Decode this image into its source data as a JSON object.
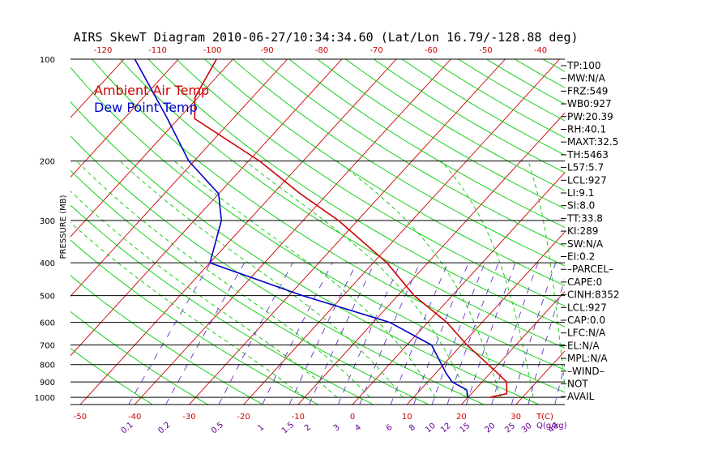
{
  "title": "AIRS SkewT Diagram 2010-06-27/10:34:34.60 (Lat/Lon 16.79/-128.88 deg)",
  "colors": {
    "ambient": "#cc0000",
    "dewpoint": "#0000cc",
    "dry_adiabat": "#00cc00",
    "moist_adiabat": "#00cc00",
    "mixing_ratio": "#6633cc",
    "isotherm": "#cc0000",
    "tick_red": "#cc0000",
    "tick_purple": "#660099"
  },
  "chart_data": {
    "type": "skew-t",
    "title": "AIRS SkewT Diagram 2010-06-27/10:34:34.60 (Lat/Lon 16.79/-128.88 deg)",
    "ylabel": "PRESSURE (MB)",
    "y_scale": "log",
    "ylim": [
      1050,
      100
    ],
    "pressure_levels": [
      100,
      200,
      300,
      400,
      500,
      600,
      700,
      800,
      900,
      1000
    ],
    "bottom_temp_ticks": [
      -50,
      -40,
      -30,
      -20,
      -10,
      0,
      10,
      20,
      30
    ],
    "top_temp_ticks": [
      -120,
      -110,
      -100,
      -90,
      -80,
      -70,
      -60,
      -50,
      -40
    ],
    "mixing_ratio_ticks": [
      "0.1",
      "0.2",
      "0.5",
      "1",
      "1.5",
      "2",
      "3",
      "4",
      "6",
      "8",
      "10",
      "12",
      "15",
      "20",
      "25",
      "30",
      "40"
    ],
    "corner_labels": [
      "T(C)",
      "Q(g/kg)"
    ],
    "legend": [
      {
        "name": "Ambient Air Temp",
        "color": "#cc0000"
      },
      {
        "name": "Dew Point Temp",
        "color": "#0000cc"
      }
    ],
    "series": [
      {
        "name": "Ambient Air Temp",
        "points": [
          {
            "p": 1000,
            "t": 24.0
          },
          {
            "p": 975,
            "t": 26.5
          },
          {
            "p": 900,
            "t": 24.5
          },
          {
            "p": 850,
            "t": 21.5
          },
          {
            "p": 700,
            "t": 11.0
          },
          {
            "p": 600,
            "t": 3.5
          },
          {
            "p": 500,
            "t": -7.0
          },
          {
            "p": 400,
            "t": -17.5
          },
          {
            "p": 300,
            "t": -33.5
          },
          {
            "p": 250,
            "t": -45.0
          },
          {
            "p": 200,
            "t": -58.0
          },
          {
            "p": 150,
            "t": -77.0
          },
          {
            "p": 130,
            "t": -80.5
          },
          {
            "p": 100,
            "t": -83.0
          }
        ]
      },
      {
        "name": "Dew Point Temp",
        "points": [
          {
            "p": 1000,
            "t": 20.0
          },
          {
            "p": 950,
            "t": 18.5
          },
          {
            "p": 900,
            "t": 14.5
          },
          {
            "p": 850,
            "t": 12.0
          },
          {
            "p": 700,
            "t": 4.5
          },
          {
            "p": 600,
            "t": -7.0
          },
          {
            "p": 500,
            "t": -27.5
          },
          {
            "p": 400,
            "t": -50.0
          },
          {
            "p": 300,
            "t": -55.0
          },
          {
            "p": 250,
            "t": -60.0
          },
          {
            "p": 200,
            "t": -71.0
          },
          {
            "p": 150,
            "t": -82.0
          },
          {
            "p": 100,
            "t": -98.0
          }
        ]
      }
    ],
    "indices": [
      "TP:100",
      "MW:N/A",
      "FRZ:549",
      "WB0:927",
      "PW:20.39",
      "RH:40.1",
      "MAXT:32.5",
      "TH:5463",
      "L57:5.7",
      "LCL:927",
      "LI:9.1",
      "SI:8.0",
      "TT:33.8",
      "KI:289",
      "SW:N/A",
      "EI:0.2",
      "–PARCEL–",
      "CAPE:0",
      "CINH:8352",
      "LCL:927",
      "CAP:0.0",
      "LFC:N/A",
      "EL:N/A",
      "MPL:N/A",
      "–WIND–",
      "NOT",
      "AVAIL"
    ]
  }
}
